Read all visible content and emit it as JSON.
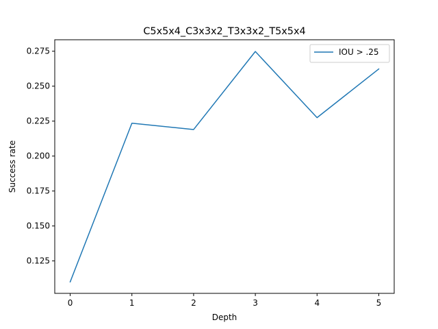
{
  "chart_data": {
    "type": "line",
    "title": "C5x5x4_C3x3x2_T3x3x2_T5x5x4",
    "xlabel": "Depth",
    "ylabel": "Success rate",
    "x": [
      0,
      1,
      2,
      3,
      4,
      5
    ],
    "series": [
      {
        "name": "IOU > .25",
        "color": "#1f77b4",
        "values": [
          0.11,
          0.2235,
          0.219,
          0.2748,
          0.2275,
          0.2623
        ]
      }
    ],
    "xlim": [
      -0.25,
      5.25
    ],
    "ylim": [
      0.1018,
      0.2832
    ],
    "xticks": [
      0,
      1,
      2,
      3,
      4,
      5
    ],
    "xtick_labels": [
      "0",
      "1",
      "2",
      "3",
      "4",
      "5"
    ],
    "yticks": [
      0.125,
      0.15,
      0.175,
      0.2,
      0.225,
      0.25,
      0.275
    ],
    "ytick_labels": [
      "0.125",
      "0.150",
      "0.175",
      "0.200",
      "0.225",
      "0.250",
      "0.275"
    ],
    "grid": false,
    "legend_position": "top-right"
  }
}
